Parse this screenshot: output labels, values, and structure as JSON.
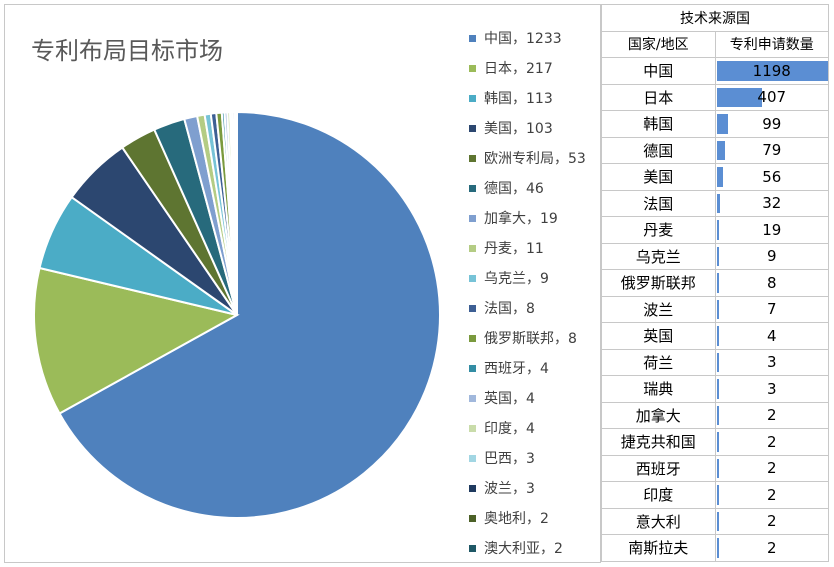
{
  "chart_data": [
    {
      "type": "pie",
      "title": "专利布局目标市场",
      "legend_position": "right",
      "slices": [
        {
          "label": "中国，1233",
          "name": "中国",
          "value": 1233,
          "color": "#4f81bd"
        },
        {
          "label": "日本，217",
          "name": "日本",
          "value": 217,
          "color": "#9bbb59"
        },
        {
          "label": "韩国，113",
          "name": "韩国",
          "value": 113,
          "color": "#4bacc6"
        },
        {
          "label": "美国，103",
          "name": "美国",
          "value": 103,
          "color": "#2c4770"
        },
        {
          "label": "欧洲专利局，53",
          "name": "欧洲专利局",
          "value": 53,
          "color": "#5e7531"
        },
        {
          "label": "德国，46",
          "name": "德国",
          "value": 46,
          "color": "#276a7c"
        },
        {
          "label": "加拿大，19",
          "name": "加拿大",
          "value": 19,
          "color": "#7f9fcf"
        },
        {
          "label": "丹麦，11",
          "name": "丹麦",
          "value": 11,
          "color": "#b4cc84"
        },
        {
          "label": "乌克兰，9",
          "name": "乌克兰",
          "value": 9,
          "color": "#77c3d7"
        },
        {
          "label": "法国，8",
          "name": "法国",
          "value": 8,
          "color": "#3d5f94"
        },
        {
          "label": "俄罗斯联邦，8",
          "name": "俄罗斯联邦",
          "value": 8,
          "color": "#7a9a3e"
        },
        {
          "label": "西班牙，4",
          "name": "西班牙",
          "value": 4,
          "color": "#338da4"
        },
        {
          "label": "英国，4",
          "name": "英国",
          "value": 4,
          "color": "#a1b8dc"
        },
        {
          "label": "印度，4",
          "name": "印度",
          "value": 4,
          "color": "#c9dcaa"
        },
        {
          "label": "巴西，3",
          "name": "巴西",
          "value": 3,
          "color": "#a2d6e3"
        },
        {
          "label": "波兰，3",
          "name": "波兰",
          "value": 3,
          "color": "#1f3a5f"
        },
        {
          "label": "奥地利，2",
          "name": "奥地利",
          "value": 2,
          "color": "#4c6128"
        },
        {
          "label": "澳大利亚，2",
          "name": "澳大利亚",
          "value": 2,
          "color": "#1f5866"
        }
      ]
    },
    {
      "type": "table",
      "title": "技术来源国",
      "columns": [
        "国家/地区",
        "专利申请数量"
      ],
      "bar_color": "#5b8ed3",
      "rows": [
        {
          "country": "中国",
          "count": 1198
        },
        {
          "country": "日本",
          "count": 407
        },
        {
          "country": "韩国",
          "count": 99
        },
        {
          "country": "德国",
          "count": 79
        },
        {
          "country": "美国",
          "count": 56
        },
        {
          "country": "法国",
          "count": 32
        },
        {
          "country": "丹麦",
          "count": 19
        },
        {
          "country": "乌克兰",
          "count": 9
        },
        {
          "country": "俄罗斯联邦",
          "count": 8
        },
        {
          "country": "波兰",
          "count": 7
        },
        {
          "country": "英国",
          "count": 4
        },
        {
          "country": "荷兰",
          "count": 3
        },
        {
          "country": "瑞典",
          "count": 3
        },
        {
          "country": "加拿大",
          "count": 2
        },
        {
          "country": "捷克共和国",
          "count": 2
        },
        {
          "country": "西班牙",
          "count": 2
        },
        {
          "country": "印度",
          "count": 2
        },
        {
          "country": "意大利",
          "count": 2
        },
        {
          "country": "南斯拉夫",
          "count": 2
        }
      ]
    }
  ]
}
